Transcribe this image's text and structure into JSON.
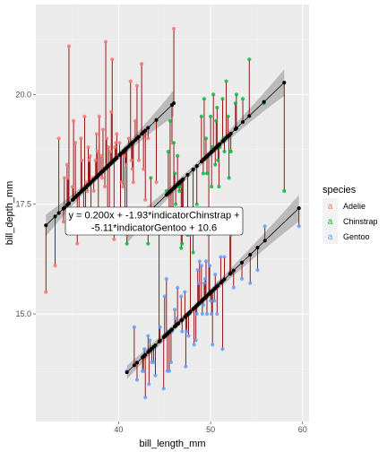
{
  "chart_data": {
    "type": "scatter",
    "x_label": "bill_length_mm",
    "y_label": "bill_depth_mm",
    "x_ticks": [
      40,
      50,
      60
    ],
    "y_ticks": [
      15.0,
      17.5,
      20.0
    ],
    "y_tick_labels": [
      "15.0",
      "17.5",
      "20.0"
    ],
    "x_tick_labels": [
      "40",
      "50",
      "60"
    ],
    "xlim": [
      31,
      60.7
    ],
    "ylim": [
      12.55,
      22.05
    ],
    "grid": true,
    "legend": {
      "title": "species",
      "position": "right",
      "entries": [
        {
          "name": "Adelie",
          "color": "#F8766D"
        },
        {
          "name": "Chinstrap",
          "color": "#00BA38"
        },
        {
          "name": "Gentoo",
          "color": "#619CFF"
        }
      ]
    },
    "model": {
      "slope": 0.2,
      "intercept": 10.6,
      "offsets": {
        "Adelie": 0,
        "Chinstrap": -1.93,
        "Gentoo": -5.11
      }
    },
    "equation_lines": [
      "y = 0.200x + -1.93*indicatorChinstrap +",
      "-5.11*indicatorGentoo + 10.6"
    ],
    "series": [
      {
        "name": "Adelie",
        "color": "#F8766D",
        "x": [
          32.1,
          33.1,
          33.5,
          34.0,
          34.1,
          34.4,
          34.5,
          34.6,
          35.0,
          35.1,
          35.3,
          35.5,
          35.7,
          35.9,
          36.0,
          36.2,
          36.3,
          36.4,
          36.5,
          36.6,
          36.7,
          36.8,
          36.9,
          37.0,
          37.2,
          37.3,
          37.5,
          37.6,
          37.7,
          37.8,
          37.9,
          38.1,
          38.2,
          38.3,
          38.5,
          38.6,
          38.7,
          38.8,
          38.9,
          39.0,
          39.1,
          39.2,
          39.3,
          39.5,
          39.6,
          39.7,
          39.8,
          40.1,
          40.2,
          40.3,
          40.5,
          40.6,
          40.7,
          40.8,
          40.9,
          41.1,
          41.3,
          41.4,
          41.5,
          41.6,
          41.8,
          42.0,
          42.2,
          42.5,
          42.7,
          42.9,
          43.2,
          44.1,
          45.8,
          46.0
        ],
        "y": [
          15.5,
          16.1,
          19.0,
          17.1,
          18.1,
          18.4,
          18.1,
          21.1,
          17.9,
          19.4,
          18.9,
          16.6,
          16.9,
          19.0,
          18.5,
          17.2,
          19.5,
          17.1,
          18.0,
          17.8,
          18.8,
          18.5,
          18.6,
          16.9,
          18.1,
          17.8,
          18.5,
          19.1,
          18.7,
          17.3,
          19.5,
          18.6,
          18.1,
          19.2,
          17.9,
          21.2,
          19.0,
          17.2,
          18.8,
          17.1,
          18.7,
          19.6,
          20.8,
          16.7,
          18.8,
          18.9,
          19.1,
          18.9,
          17.0,
          18.0,
          17.9,
          18.6,
          17.0,
          18.4,
          16.8,
          19.0,
          20.3,
          18.5,
          18.3,
          18.0,
          19.4,
          20.2,
          18.5,
          20.7,
          18.3,
          17.6,
          19.0,
          18.0,
          18.9,
          21.5
        ]
      },
      {
        "name": "Chinstrap",
        "color": "#00BA38",
        "x": [
          40.9,
          42.4,
          42.5,
          43.2,
          43.5,
          45.2,
          45.4,
          45.5,
          45.6,
          45.7,
          45.9,
          46.0,
          46.1,
          46.2,
          46.4,
          46.5,
          46.6,
          46.7,
          46.8,
          46.9,
          47.0,
          47.5,
          48.1,
          48.5,
          49.0,
          49.2,
          49.3,
          49.5,
          49.6,
          49.7,
          49.8,
          50.0,
          50.1,
          50.2,
          50.3,
          50.5,
          50.6,
          50.7,
          50.8,
          50.9,
          51.0,
          51.3,
          51.4,
          51.5,
          51.7,
          51.9,
          52.0,
          52.2,
          52.7,
          52.8,
          53.5,
          54.2,
          55.8,
          58.0
        ],
        "y": [
          16.6,
          17.3,
          17.3,
          16.6,
          18.1,
          17.8,
          18.7,
          17.0,
          19.4,
          17.3,
          17.1,
          18.9,
          18.2,
          17.5,
          18.6,
          17.9,
          17.8,
          17.9,
          16.5,
          16.6,
          17.3,
          16.8,
          16.4,
          17.5,
          19.5,
          18.2,
          19.9,
          19.0,
          18.2,
          18.6,
          17.3,
          19.5,
          17.9,
          18.8,
          20.0,
          18.4,
          19.4,
          19.7,
          18.5,
          17.9,
          18.8,
          19.9,
          19.0,
          18.7,
          20.3,
          19.5,
          18.1,
          18.7,
          19.8,
          20.0,
          19.9,
          20.8,
          19.8,
          17.8
        ]
      },
      {
        "name": "Gentoo",
        "color": "#619CFF",
        "x": [
          40.9,
          41.7,
          42.0,
          42.6,
          42.7,
          42.8,
          42.9,
          43.2,
          43.3,
          43.4,
          43.5,
          43.6,
          43.8,
          44.0,
          44.4,
          44.5,
          44.9,
          45.0,
          45.1,
          45.2,
          45.3,
          45.4,
          45.5,
          45.7,
          45.8,
          46.1,
          46.2,
          46.4,
          46.5,
          46.8,
          46.9,
          47.2,
          47.3,
          47.4,
          47.5,
          47.6,
          47.7,
          47.8,
          48.1,
          48.2,
          48.4,
          48.5,
          48.6,
          48.7,
          48.8,
          49.0,
          49.1,
          49.2,
          49.3,
          49.4,
          49.5,
          49.6,
          49.8,
          49.9,
          50.0,
          50.1,
          50.2,
          50.4,
          50.5,
          50.7,
          50.8,
          51.1,
          51.3,
          51.5,
          52.1,
          52.2,
          52.5,
          53.4,
          54.3,
          55.1,
          55.9,
          59.6
        ],
        "y": [
          13.7,
          14.7,
          13.5,
          13.7,
          13.7,
          14.2,
          13.1,
          14.5,
          13.4,
          14.4,
          14.2,
          13.9,
          13.9,
          13.6,
          17.0,
          14.7,
          13.3,
          15.4,
          14.5,
          15.8,
          13.7,
          14.6,
          13.7,
          13.9,
          14.6,
          15.1,
          14.9,
          15.6,
          14.8,
          15.4,
          14.6,
          15.5,
          13.8,
          14.6,
          15.0,
          14.5,
          15.0,
          16.8,
          15.1,
          14.3,
          14.4,
          15.0,
          16.0,
          15.7,
          16.2,
          16.1,
          15.0,
          15.2,
          15.7,
          15.8,
          16.2,
          15.0,
          16.8,
          16.1,
          15.3,
          15.0,
          14.3,
          15.3,
          15.9,
          15.0,
          15.7,
          16.3,
          14.2,
          16.3,
          17.0,
          16.8,
          15.6,
          15.8,
          15.7,
          16.0,
          17.0,
          17.0
        ]
      }
    ]
  }
}
